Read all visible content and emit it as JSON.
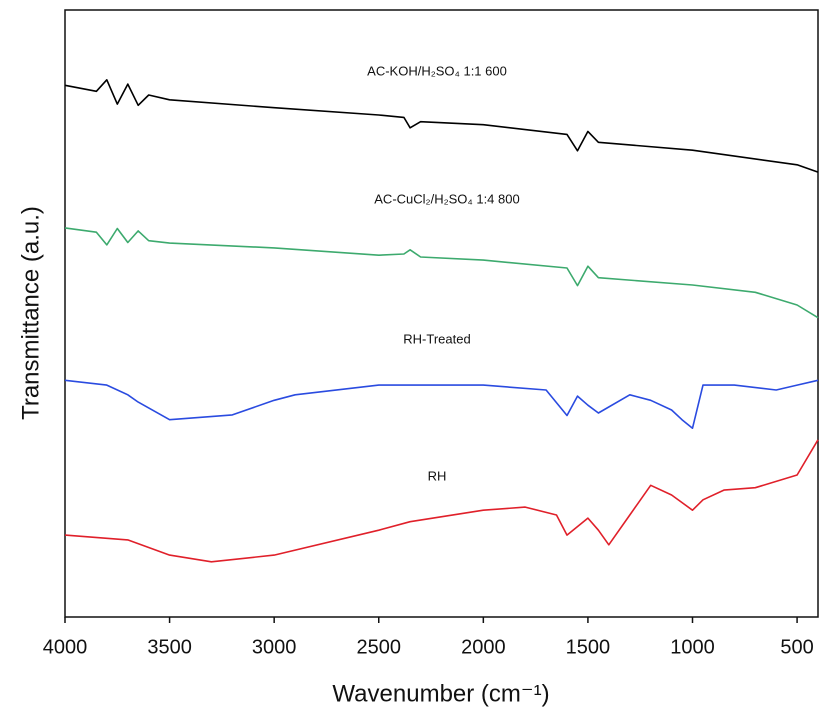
{
  "chart_data": {
    "type": "line",
    "x_label": "Wavenumber (cm⁻¹)",
    "y_label": "Transmittance (a.u.)",
    "xlim": [
      4000,
      400
    ],
    "ylim": [
      0,
      100
    ],
    "xticks": [
      4000,
      3500,
      3000,
      2500,
      2000,
      1500,
      1000,
      500
    ],
    "series": [
      {
        "name": "AC-KOH/H₂SO₄ 1:1 600",
        "color": "#000000",
        "x": [
          4000,
          3850,
          3800,
          3750,
          3700,
          3650,
          3600,
          3500,
          3000,
          2500,
          2380,
          2350,
          2300,
          2000,
          1600,
          1550,
          1500,
          1450,
          1000,
          500,
          400
        ],
        "values": [
          87.6,
          86.6,
          88.5,
          84.5,
          87.8,
          84.3,
          86.0,
          85.2,
          83.9,
          82.7,
          82.3,
          80.6,
          81.6,
          81.1,
          79.5,
          76.8,
          80.0,
          78.2,
          76.9,
          74.5,
          73.3
        ]
      },
      {
        "name": "AC-CuCl₂/H₂SO₄ 1:4 800",
        "color": "#3daa6e",
        "x": [
          4000,
          3850,
          3800,
          3750,
          3700,
          3650,
          3600,
          3500,
          3000,
          2500,
          2380,
          2350,
          2300,
          2000,
          1600,
          1550,
          1500,
          1450,
          1000,
          700,
          500,
          400
        ],
        "values": [
          64.1,
          63.4,
          61.3,
          64.0,
          61.7,
          63.6,
          62.0,
          61.6,
          60.8,
          59.6,
          59.8,
          60.5,
          59.3,
          58.8,
          57.5,
          54.6,
          57.8,
          55.9,
          54.7,
          53.5,
          51.4,
          49.3
        ]
      },
      {
        "name": "RH-Treated",
        "color": "#2a4be0",
        "x": [
          4000,
          3800,
          3700,
          3650,
          3500,
          3200,
          3000,
          2900,
          2500,
          2000,
          1700,
          1600,
          1550,
          1500,
          1450,
          1300,
          1200,
          1100,
          1050,
          1000,
          950,
          800,
          600,
          500,
          400
        ],
        "values": [
          39.0,
          38.2,
          36.6,
          35.4,
          32.5,
          33.3,
          35.7,
          36.6,
          38.2,
          38.2,
          37.4,
          33.2,
          36.4,
          34.9,
          33.6,
          36.6,
          35.7,
          34.1,
          32.5,
          31.1,
          38.2,
          38.2,
          37.4,
          38.2,
          39.0
        ]
      },
      {
        "name": "RH",
        "color": "#e0202a",
        "x": [
          4000,
          3700,
          3500,
          3300,
          3000,
          2500,
          2350,
          2000,
          1800,
          1650,
          1600,
          1500,
          1450,
          1400,
          1300,
          1200,
          1100,
          1000,
          950,
          850,
          700,
          500,
          400
        ],
        "values": [
          13.5,
          12.7,
          10.2,
          9.1,
          10.2,
          14.3,
          15.7,
          17.6,
          18.1,
          16.8,
          13.5,
          16.3,
          14.3,
          11.9,
          16.8,
          21.7,
          20.1,
          17.6,
          19.3,
          20.9,
          21.3,
          23.4,
          29.2
        ]
      }
    ]
  }
}
